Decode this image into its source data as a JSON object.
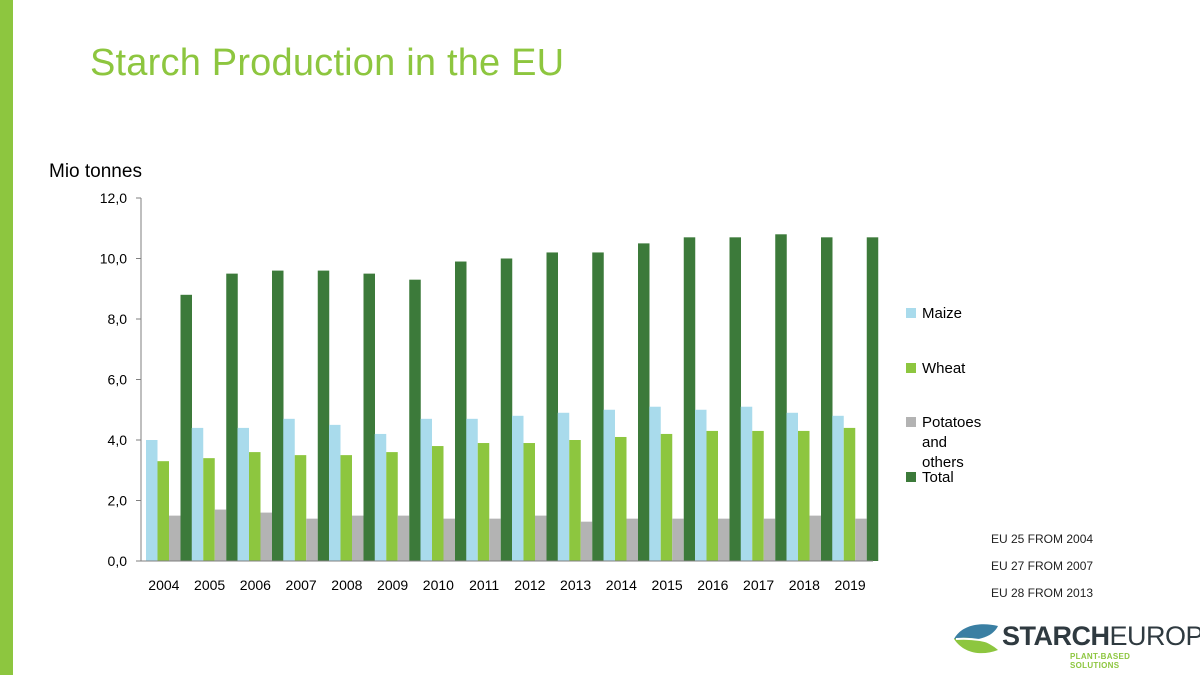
{
  "slide": {
    "title": "Starch Production in the EU",
    "accent_color": "#8dc63f",
    "notes": [
      "EU 25 FROM 2004",
      "EU 27 FROM 2007",
      "EU 28 FROM 2013"
    ],
    "logo": {
      "name_part1": "STARCH",
      "name_part2": "EUROPE",
      "tagline": "PLANT-BASED SOLUTIONS"
    }
  },
  "chart_data": {
    "type": "bar",
    "title": "",
    "xlabel": "",
    "ylabel": "Mio tonnes",
    "categories": [
      "2004",
      "2005",
      "2006",
      "2007",
      "2008",
      "2009",
      "2010",
      "2011",
      "2012",
      "2013",
      "2014",
      "2015",
      "2016",
      "2017",
      "2018",
      "2019"
    ],
    "ylim": [
      0,
      12
    ],
    "yticks": [
      "0,0",
      "2,0",
      "4,0",
      "6,0",
      "8,0",
      "10,0",
      "12,0"
    ],
    "grid": false,
    "legend_position": "right",
    "series": [
      {
        "name": "Maize",
        "color": "#a9dbec",
        "values": [
          4.0,
          4.4,
          4.4,
          4.7,
          4.5,
          4.2,
          4.7,
          4.7,
          4.8,
          4.9,
          5.0,
          5.1,
          5.0,
          5.1,
          4.9,
          4.8
        ]
      },
      {
        "name": "Wheat",
        "color": "#8dc63f",
        "values": [
          3.3,
          3.4,
          3.6,
          3.5,
          3.5,
          3.6,
          3.8,
          3.9,
          3.9,
          4.0,
          4.1,
          4.2,
          4.3,
          4.3,
          4.3,
          4.4
        ]
      },
      {
        "name": "Potatoes\nand others",
        "color": "#b3b3b3",
        "values": [
          1.5,
          1.7,
          1.6,
          1.4,
          1.5,
          1.5,
          1.4,
          1.4,
          1.5,
          1.3,
          1.4,
          1.4,
          1.4,
          1.4,
          1.5,
          1.4
        ]
      },
      {
        "name": "Total",
        "color": "#3c7a3a",
        "values": [
          8.8,
          9.5,
          9.6,
          9.6,
          9.5,
          9.3,
          9.9,
          10.0,
          10.2,
          10.2,
          10.5,
          10.7,
          10.7,
          10.8,
          10.7,
          10.7
        ]
      }
    ]
  }
}
